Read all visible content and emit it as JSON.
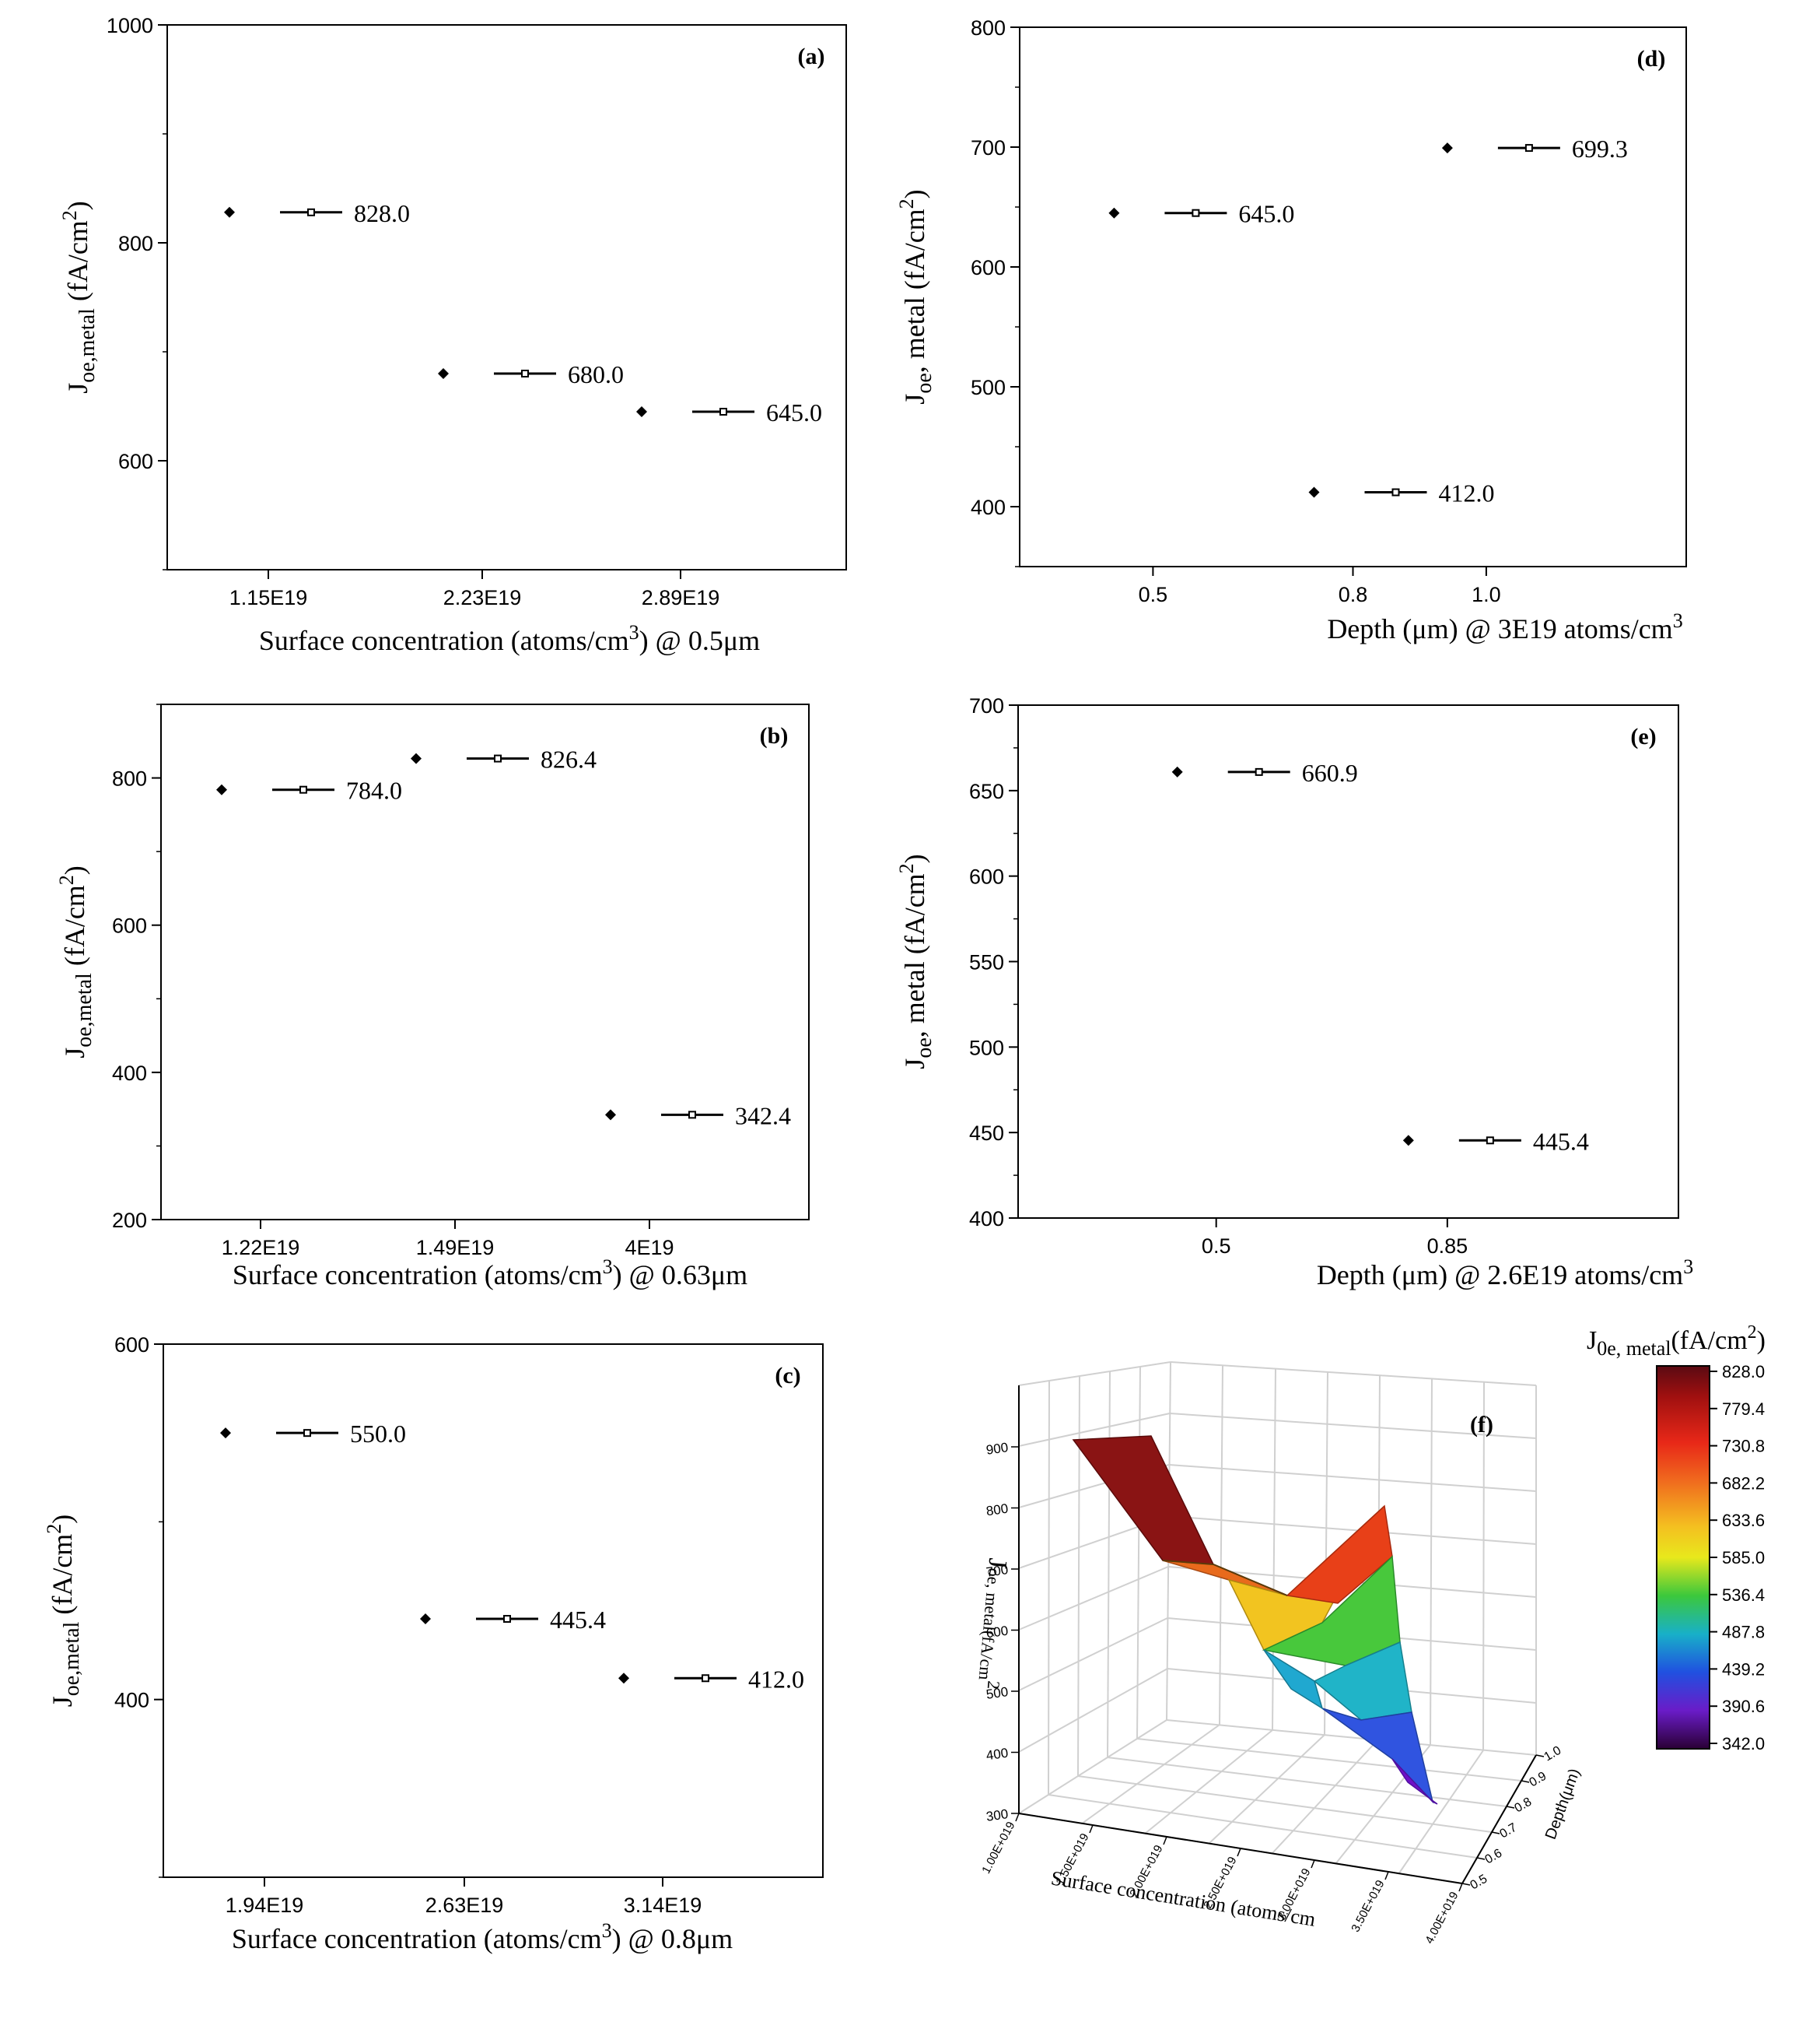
{
  "chart_data": [
    {
      "type": "scatter",
      "panel_label": "(a)",
      "categories": [
        "1.15E19",
        "2.23E19",
        "2.89E19"
      ],
      "values": [
        828.0,
        680.0,
        645.0
      ],
      "data_labels": [
        "828.0",
        "680.0",
        "645.0"
      ],
      "ylim": [
        500,
        1000
      ],
      "yticks": [
        "600",
        "800",
        "1000"
      ],
      "xlabel": "Surface concentration (atoms/cm",
      "xlabel_sup": "3",
      "xlabel_tail": ") @ 0.5μm",
      "ylabel_main": "J",
      "ylabel_sub": "oe,metal",
      "ylabel_rest": " (fA/cm",
      "ylabel_sup": "2",
      "ylabel_end": ")",
      "legend": "none",
      "grid": false
    },
    {
      "type": "scatter",
      "panel_label": "(b)",
      "categories": [
        "1.22E19",
        "1.49E19",
        "4E19"
      ],
      "values": [
        784.0,
        826.4,
        342.4
      ],
      "data_labels": [
        "784.0",
        "826.4",
        "342.4"
      ],
      "ylim": [
        200,
        900
      ],
      "yticks": [
        "200",
        "400",
        "600",
        "800"
      ],
      "xlabel": "Surface concentration (atoms/cm",
      "xlabel_sup": "3",
      "xlabel_tail": ") @ 0.63μm",
      "ylabel_main": "J",
      "ylabel_sub": "oe,metal",
      "ylabel_rest": " (fA/cm",
      "ylabel_sup": "2",
      "ylabel_end": ")",
      "legend": "none",
      "grid": false
    },
    {
      "type": "scatter",
      "panel_label": "(c)",
      "categories": [
        "1.94E19",
        "2.63E19",
        "3.14E19"
      ],
      "values": [
        550.0,
        445.4,
        412.0
      ],
      "data_labels": [
        "550.0",
        "445.4",
        "412.0"
      ],
      "ylim": [
        300,
        600
      ],
      "yticks": [
        "400",
        "600"
      ],
      "xlabel": "Surface concentration (atoms/cm",
      "xlabel_sup": "3",
      "xlabel_tail": ") @ 0.8μm",
      "ylabel_main": "J",
      "ylabel_sub": "oe,metal",
      "ylabel_rest": " (fA/cm",
      "ylabel_sup": "2",
      "ylabel_end": ")",
      "legend": "none",
      "grid": false
    },
    {
      "type": "scatter",
      "panel_label": "(d)",
      "x": [
        0.5,
        0.8,
        1.0
      ],
      "values": [
        645.0,
        412.0,
        699.3
      ],
      "data_labels": [
        "645.0",
        "412.0",
        "699.3"
      ],
      "xlim": [
        0.3,
        1.3
      ],
      "xticks": [
        "0.5",
        "0.8",
        "1.0"
      ],
      "ylim": [
        350,
        800
      ],
      "yticks": [
        "400",
        "500",
        "600",
        "700",
        "800"
      ],
      "xlabel": "Depth (μm) @ 3E19 atoms/cm",
      "xlabel_sup": "3",
      "xlabel_tail": "",
      "ylabel_main": "J",
      "ylabel_sub": "oe",
      "ylabel_rest": ", metal (fA/cm",
      "ylabel_sup": "2",
      "ylabel_end": ")",
      "legend": "none",
      "grid": false
    },
    {
      "type": "scatter",
      "panel_label": "(e)",
      "x": [
        0.5,
        0.85
      ],
      "values": [
        660.9,
        445.4
      ],
      "data_labels": [
        "660.9",
        "445.4"
      ],
      "xlim": [
        0.2,
        1.2
      ],
      "xticks": [
        "0.5",
        "0.85"
      ],
      "ylim": [
        400,
        700
      ],
      "yticks": [
        "400",
        "450",
        "500",
        "550",
        "600",
        "650",
        "700"
      ],
      "xlabel": "Depth (μm) @ 2.6E19 atoms/cm",
      "xlabel_sup": "3",
      "xlabel_tail": "",
      "ylabel_main": "J",
      "ylabel_sub": "oe",
      "ylabel_rest": ", metal (fA/cm",
      "ylabel_sup": "2",
      "ylabel_end": ")",
      "legend": "none",
      "grid": false
    },
    {
      "type": "heatmap",
      "panel_label": "(f)",
      "colorbar_title_main": "J",
      "colorbar_title_sub": "0e, metal",
      "colorbar_title_rest": "(fA/cm",
      "colorbar_title_sup": "2",
      "colorbar_title_end": ")",
      "colorbar_ticks": [
        "828.0",
        "779.4",
        "730.8",
        "682.2",
        "633.6",
        "585.0",
        "536.4",
        "487.8",
        "439.2",
        "390.6",
        "342.0"
      ],
      "colorbar_range": [
        342.0,
        828.0
      ],
      "z_ticks": [
        "300",
        "400",
        "500",
        "600",
        "700",
        "800",
        "900"
      ],
      "z_label": "J",
      "z_label_rest": "oe, metal(fA/cm",
      "z_label_sup": "2",
      "x_ticks": [
        "1.00E+019",
        "1.50E+019",
        "2.00E+019",
        "2.50E+019",
        "3.00E+019",
        "3.50E+019",
        "4.00E+019"
      ],
      "x_label": "Surface concentration (atoms/cm",
      "depth_ticks": [
        "0.5",
        "0.6",
        "0.7",
        "0.8",
        "0.9",
        "1.0"
      ],
      "depth_label": "Depth(μm)",
      "grid": true
    }
  ],
  "colors": {
    "axis": "#000000",
    "marker": "#000000",
    "background": "#ffffff",
    "grid3d": "#d4d4d4"
  }
}
